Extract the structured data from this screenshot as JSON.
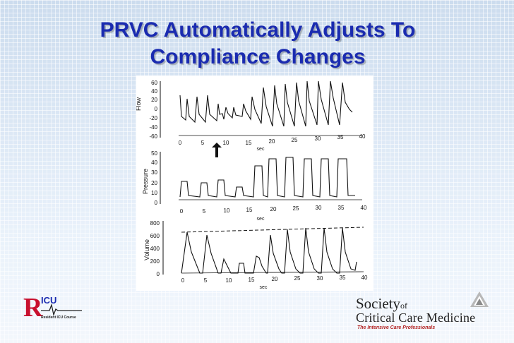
{
  "slide": {
    "title_line1": "PRVC Automatically Adjusts To",
    "title_line2": "Compliance Changes"
  },
  "figure": {
    "x_unit": "sec",
    "x_ticks": [
      "0",
      "5",
      "10",
      "15",
      "20",
      "25",
      "30",
      "35",
      "40"
    ],
    "panels": [
      {
        "label": "Flow",
        "y_ticks": [
          "60",
          "40",
          "20",
          "0",
          "-20",
          "-40",
          "-60"
        ]
      },
      {
        "label": "Pressure",
        "y_ticks": [
          "50",
          "40",
          "30",
          "20",
          "10",
          "0"
        ]
      },
      {
        "label": "Volume",
        "y_ticks": [
          "800",
          "600",
          "400",
          "200",
          "0"
        ]
      }
    ]
  },
  "logos": {
    "ricu_mark": "RICU",
    "ricu_sub": "Resident ICU Course",
    "sccm_line1": "Society",
    "sccm_of": "of",
    "sccm_line2": "Critical Care Medicine",
    "sccm_tagline": "The Intensive Care Professionals"
  },
  "colors": {
    "title": "#1a2bb0",
    "ricu_red": "#c8102e",
    "sccm_red": "#b22222"
  }
}
